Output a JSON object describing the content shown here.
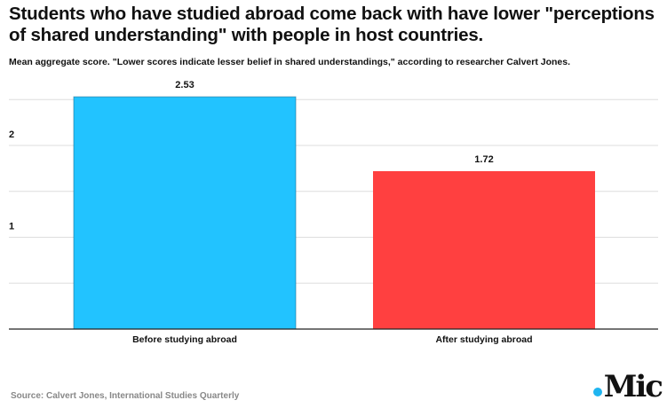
{
  "title": "Students who have studied abroad come back with have lower \"perceptions of shared understanding\" with people in host countries.",
  "subtitle": "Mean aggregate score. \"Lower scores indicate lesser belief in shared understandings,\" according to researcher Calvert Jones.",
  "source": "Source: Calvert Jones, International Studies Quarterly",
  "logo": ".Mic",
  "chart_data": {
    "type": "bar",
    "categories": [
      "Before studying abroad",
      "After studying abroad"
    ],
    "values": [
      2.53,
      1.72
    ],
    "data_labels": [
      "2.53",
      "1.72"
    ],
    "colors": [
      "#22c3ff",
      "#ff4040"
    ],
    "yticks": [
      "1",
      "2"
    ],
    "ylim": [
      0,
      2.5
    ],
    "grid": true
  }
}
